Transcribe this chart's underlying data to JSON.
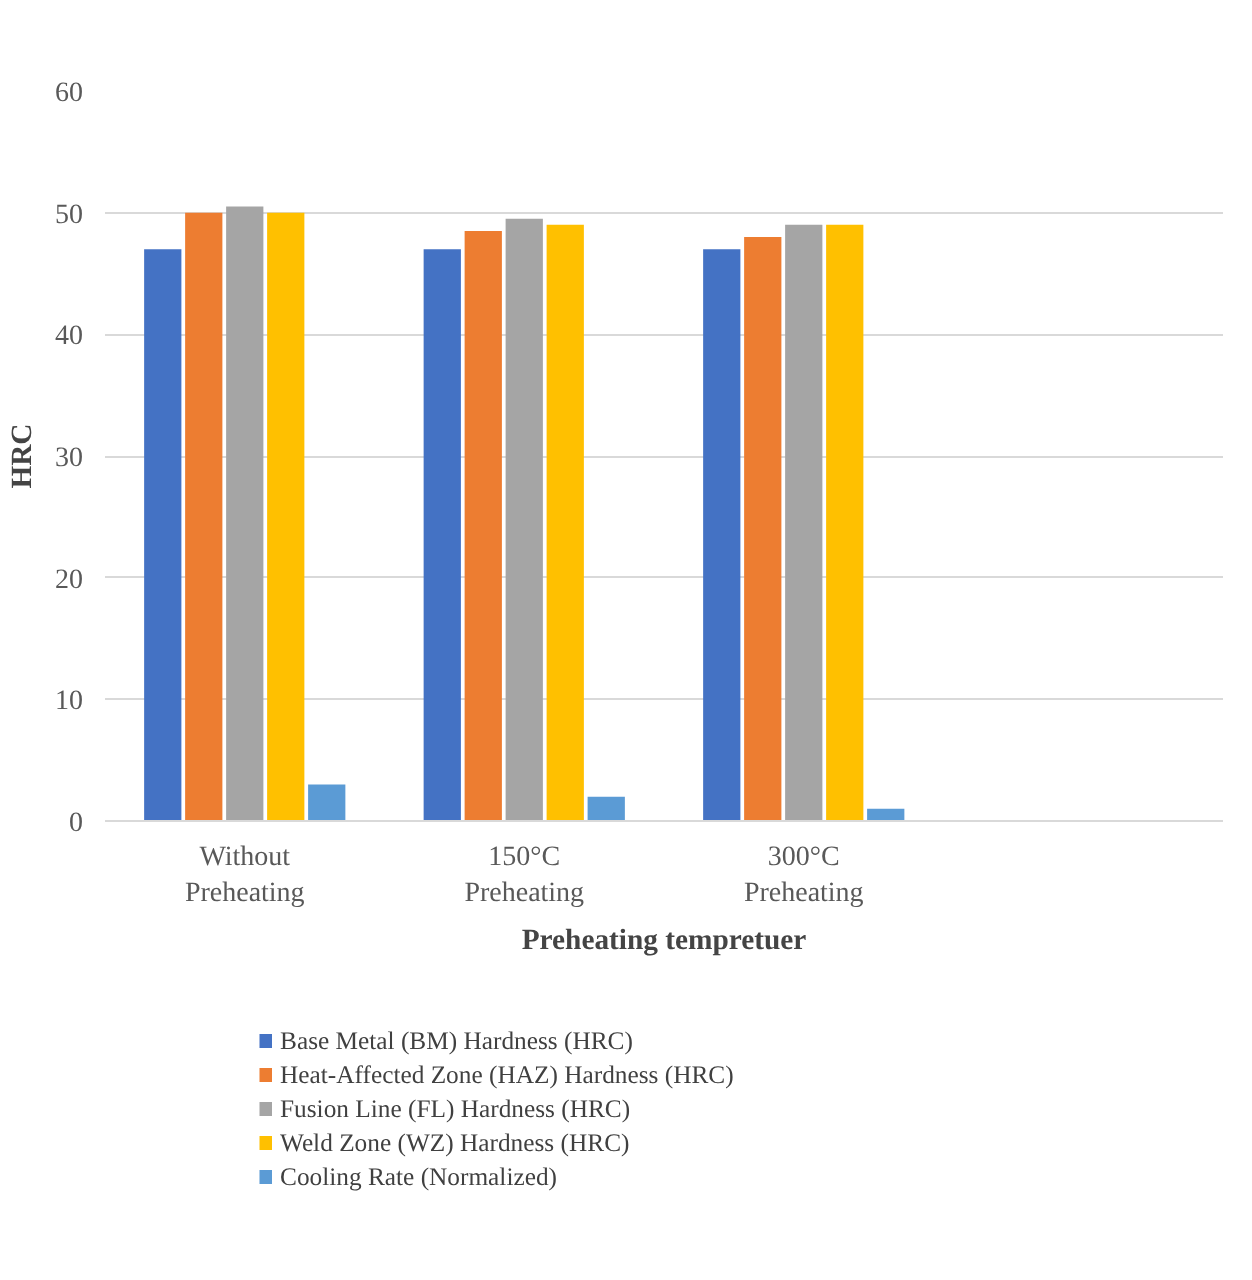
{
  "chart_data": {
    "type": "bar",
    "categories": [
      "Without\nPreheating",
      "150°C\nPreheating",
      "300°C\nPreheating",
      null
    ],
    "xlabel": "Preheating tempretuer",
    "ylabel": "HRC",
    "series": [
      {
        "name": "Base Metal (BM) Hardness (HRC)",
        "color": "#4472c4",
        "values": [
          47,
          47,
          47,
          null
        ]
      },
      {
        "name": "Heat-Affected Zone (HAZ) Hardness (HRC)",
        "color": "#ed7d31",
        "values": [
          50,
          48.5,
          48,
          null
        ]
      },
      {
        "name": "Fusion Line (FL) Hardness (HRC)",
        "color": "#a5a5a5",
        "values": [
          50.5,
          49.5,
          49,
          null
        ]
      },
      {
        "name": "Weld Zone (WZ) Hardness (HRC)",
        "color": "#ffc000",
        "values": [
          50,
          49,
          49,
          null
        ]
      },
      {
        "name": "Cooling Rate (Normalized)",
        "color": "#5b9bd5",
        "values": [
          3,
          2,
          1,
          null
        ]
      }
    ],
    "ylim": [
      0,
      60
    ],
    "yticks": [
      0,
      10,
      20,
      30,
      40,
      50,
      60
    ],
    "grid": "y",
    "legend": "bottom"
  }
}
